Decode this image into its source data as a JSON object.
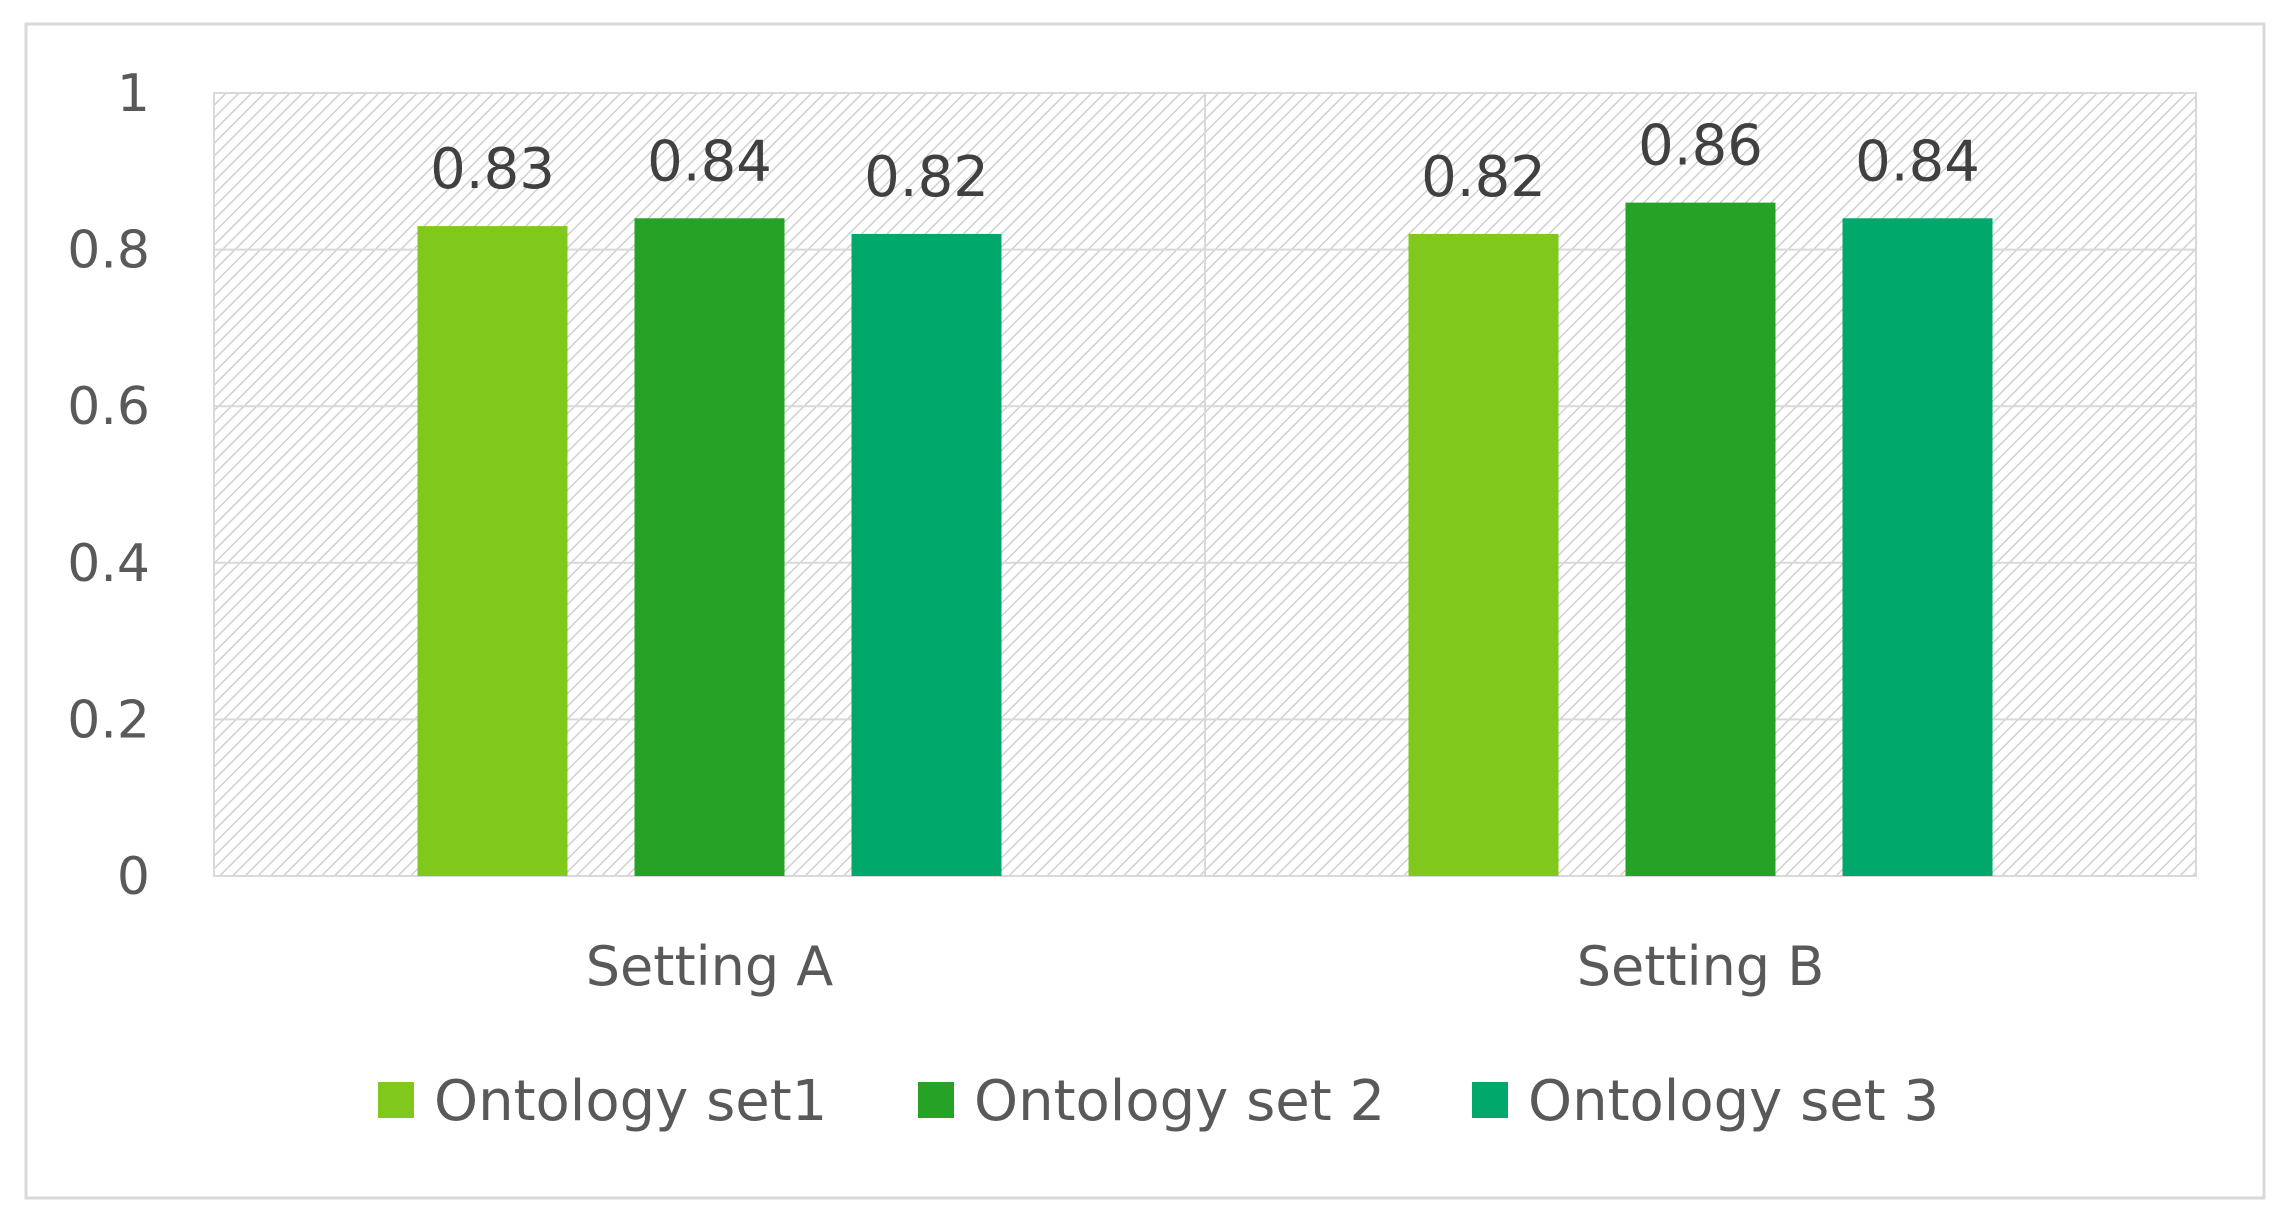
{
  "chart_data": {
    "type": "bar",
    "title": "",
    "xlabel": "",
    "ylabel": "",
    "categories": [
      "Setting A",
      "Setting B"
    ],
    "series": [
      {
        "name": "Ontology set1",
        "values": [
          0.83,
          0.82
        ],
        "color": "#80c81c"
      },
      {
        "name": "Ontology set 2",
        "values": [
          0.84,
          0.86
        ],
        "color": "#26a326"
      },
      {
        "name": "Ontology set 3",
        "values": [
          0.82,
          0.84
        ],
        "color": "#00a86b"
      }
    ],
    "ylim": [
      0,
      1
    ],
    "yticks": [
      "0",
      "0.2",
      "0.4",
      "0.6",
      "0.8",
      "1"
    ],
    "ytick_values": [
      0,
      0.2,
      0.4,
      0.6,
      0.8,
      1
    ],
    "grid": true,
    "plot_background": "hatched",
    "legend_position": "bottom",
    "data_labels": true
  }
}
